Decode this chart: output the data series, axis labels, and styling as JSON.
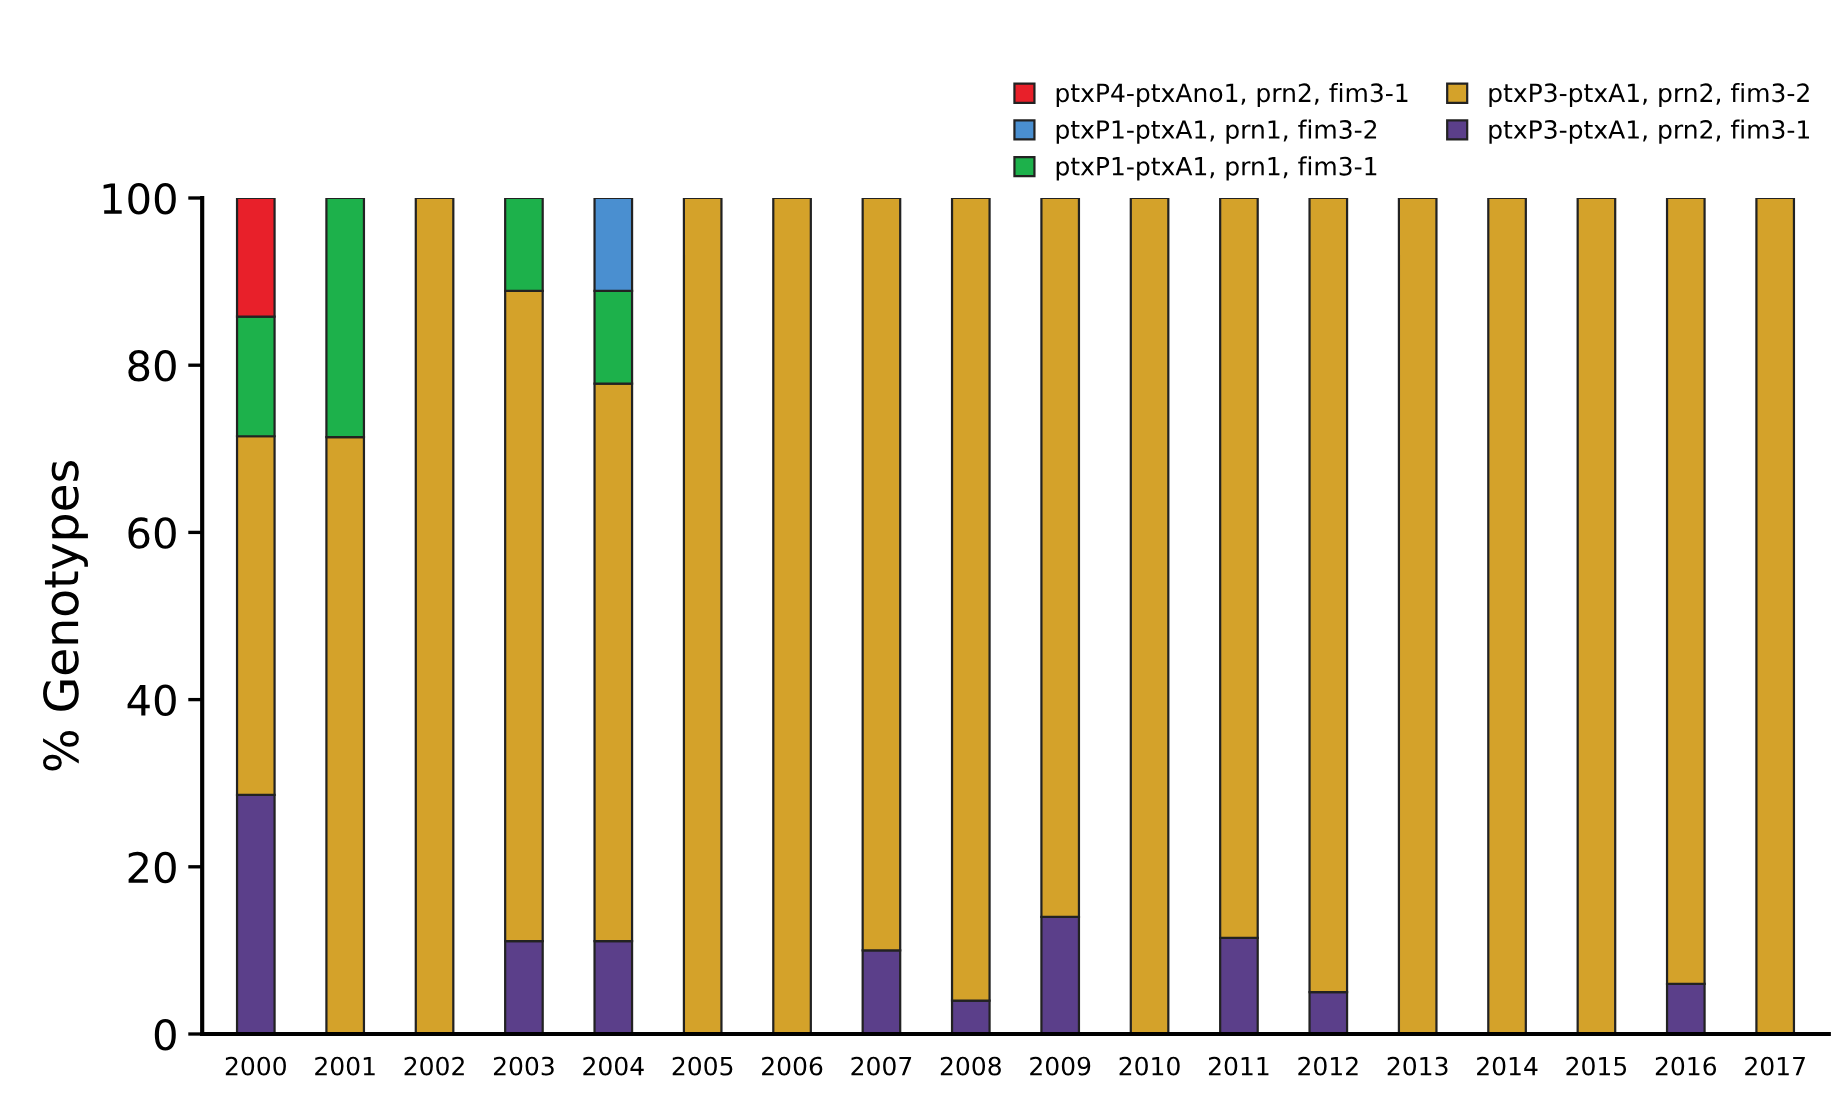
{
  "chart_data": {
    "type": "bar",
    "stacked": true,
    "ylabel": "% Genotypes",
    "categories": [
      "2000",
      "2001",
      "2002",
      "2003",
      "2004",
      "2005",
      "2006",
      "2007",
      "2008",
      "2009",
      "2010",
      "2011",
      "2012",
      "2013",
      "2014",
      "2015",
      "2016",
      "2017"
    ],
    "series": [
      {
        "name": "ptxP3-ptxA1, prn2, fim3-1",
        "color": "#5b3f8a",
        "values": [
          28.6,
          null,
          null,
          11.1,
          11.1,
          null,
          null,
          10,
          4,
          14,
          null,
          11.5,
          5,
          null,
          null,
          null,
          6,
          null
        ]
      },
      {
        "name": "ptxP3-ptxA1, prn2, fim3-2",
        "color": "#d4a22a",
        "values": [
          42.9,
          71.4,
          100,
          77.8,
          66.7,
          100,
          100,
          90,
          96,
          86,
          100,
          88.5,
          95,
          100,
          100,
          100,
          94,
          100
        ]
      },
      {
        "name": "ptxP1-ptxA1, prn1, fim3-1",
        "color": "#1db14b",
        "values": [
          14.3,
          28.6,
          null,
          11.1,
          11.1,
          null,
          null,
          null,
          null,
          null,
          null,
          null,
          null,
          null,
          null,
          null,
          null,
          null
        ]
      },
      {
        "name": "ptxP1-ptxA1, prn1, fim3-2",
        "color": "#4a8fd0",
        "values": [
          null,
          null,
          null,
          null,
          11.1,
          null,
          null,
          null,
          null,
          null,
          null,
          null,
          null,
          null,
          null,
          null,
          null,
          null
        ]
      },
      {
        "name": "ptxP4-ptxAno1, prn2, fim3-1",
        "color": "#e8202a",
        "values": [
          14.2,
          null,
          null,
          null,
          null,
          null,
          null,
          null,
          null,
          null,
          null,
          null,
          null,
          null,
          null,
          null,
          null,
          null
        ]
      }
    ],
    "ylim": [
      0,
      100
    ],
    "yticks": [
      0,
      20,
      40,
      60,
      80,
      100
    ],
    "grid": false,
    "legend": "top right"
  }
}
